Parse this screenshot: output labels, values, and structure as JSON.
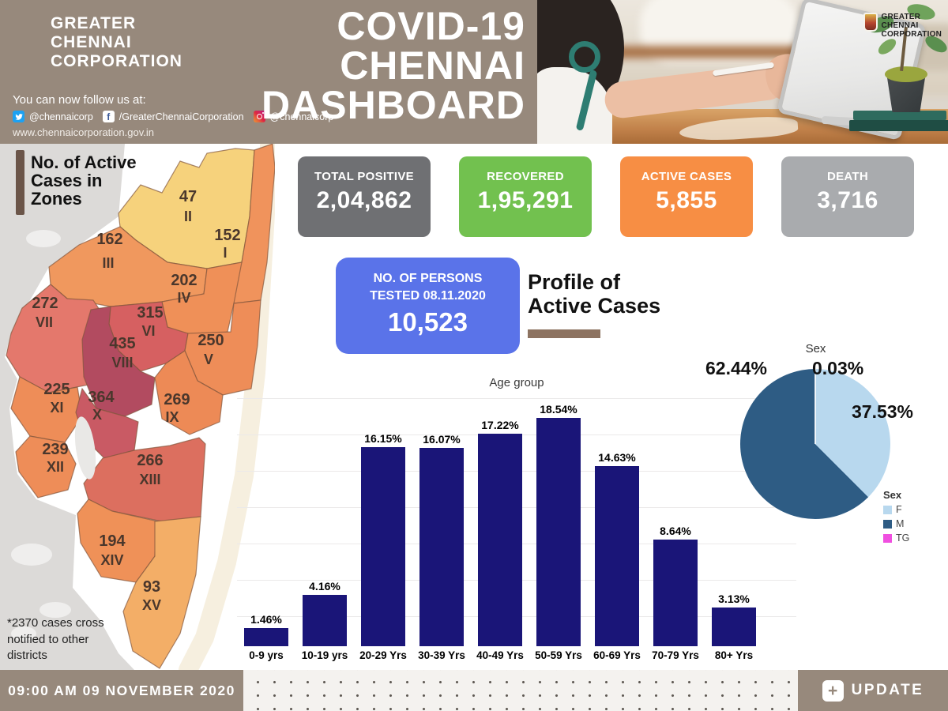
{
  "theme": {
    "taupe": "#97897c",
    "accent_brown": "#8d7361",
    "navy": "#1a1578",
    "card_gray": "#6f7073",
    "card_green": "#72c14f",
    "card_orange": "#f78e44",
    "card_lightgray": "#a9abae",
    "card_blue": "#5a73e9"
  },
  "header": {
    "org_name": "GREATER\nCHENNAI\nCORPORATION",
    "follow_text": "You can now follow us at:",
    "social": {
      "twitter": "@chennaicorp",
      "facebook": "/GreaterChennaiCorporation",
      "instagram": "@chennaicorp"
    },
    "website": "www.chennaicorporation.gov.in",
    "title": "COVID-19\nCHENNAI\nDASHBOARD",
    "photo_logo_text": "GREATER\nCHENNAI\nCORPORATION"
  },
  "summary_cards": [
    {
      "label": "TOTAL POSITIVE",
      "value": "2,04,862",
      "color": "#6f7073"
    },
    {
      "label": "RECOVERED",
      "value": "1,95,291",
      "color": "#72c14f"
    },
    {
      "label": "ACTIVE CASES",
      "value": "5,855",
      "color": "#f78e44"
    },
    {
      "label": "DEATH",
      "value": "3,716",
      "color": "#a9abae"
    }
  ],
  "tested_card": {
    "label": "NO. OF PERSONS\nTESTED 08.11.2020",
    "value": "10,523",
    "color": "#5a73e9"
  },
  "profile_title": "Profile of\nActive Cases",
  "map": {
    "title": "No. of Active\nCases in\nZones",
    "note": "*2370 cases cross\nnotified to other\ndistricts",
    "zones": [
      {
        "zone": "II",
        "cases": "47",
        "color": "#f6d27c"
      },
      {
        "zone": "I",
        "cases": "152",
        "color": "#f0935c"
      },
      {
        "zone": "III",
        "cases": "162",
        "color": "#f0985e"
      },
      {
        "zone": "IV",
        "cases": "202",
        "color": "#ef9058"
      },
      {
        "zone": "VII",
        "cases": "272",
        "color": "#e4786c"
      },
      {
        "zone": "VI",
        "cases": "315",
        "color": "#d66061"
      },
      {
        "zone": "VIII",
        "cases": "435",
        "color": "#b24b60"
      },
      {
        "zone": "V",
        "cases": "250",
        "color": "#ee8d58"
      },
      {
        "zone": "XI",
        "cases": "225",
        "color": "#ee8d58"
      },
      {
        "zone": "X",
        "cases": "364",
        "color": "#c95a64"
      },
      {
        "zone": "IX",
        "cases": "269",
        "color": "#ed8a56"
      },
      {
        "zone": "XII",
        "cases": "239",
        "color": "#ee8d58"
      },
      {
        "zone": "XIII",
        "cases": "266",
        "color": "#dc6f5f"
      },
      {
        "zone": "XIV",
        "cases": "194",
        "color": "#ef9158"
      },
      {
        "zone": "XV",
        "cases": "93",
        "color": "#f3ae67"
      }
    ]
  },
  "chart_data": [
    {
      "type": "bar",
      "title": "Age group",
      "categories": [
        "0-9 yrs",
        "10-19 yrs",
        "20-29 Yrs",
        "30-39 Yrs",
        "40-49 Yrs",
        "50-59 Yrs",
        "60-69 Yrs",
        "70-79 Yrs",
        "80+ Yrs"
      ],
      "values": [
        1.46,
        4.16,
        16.15,
        16.07,
        17.22,
        18.54,
        14.63,
        8.64,
        3.13
      ],
      "data_labels": [
        "1.46%",
        "4.16%",
        "16.15%",
        "16.07%",
        "17.22%",
        "18.54%",
        "14.63%",
        "8.64%",
        "3.13%"
      ],
      "bar_color": "#1a1578",
      "xlabel": "",
      "ylabel": "",
      "ylim": [
        0,
        20
      ],
      "grid": true,
      "legend_position": "none"
    },
    {
      "type": "pie",
      "title": "Sex",
      "legend_title": "Sex",
      "slices": [
        {
          "label": "F",
          "value": 37.53,
          "display": "37.53%",
          "color": "#b8d8ee"
        },
        {
          "label": "M",
          "value": 62.44,
          "display": "62.44%",
          "color": "#2e5c84"
        },
        {
          "label": "TG",
          "value": 0.03,
          "display": "0.03%",
          "color": "#f04fe0"
        }
      ]
    }
  ],
  "footer": {
    "timestamp": "09:00 AM 09 NOVEMBER 2020",
    "update_label": "UPDATE"
  }
}
